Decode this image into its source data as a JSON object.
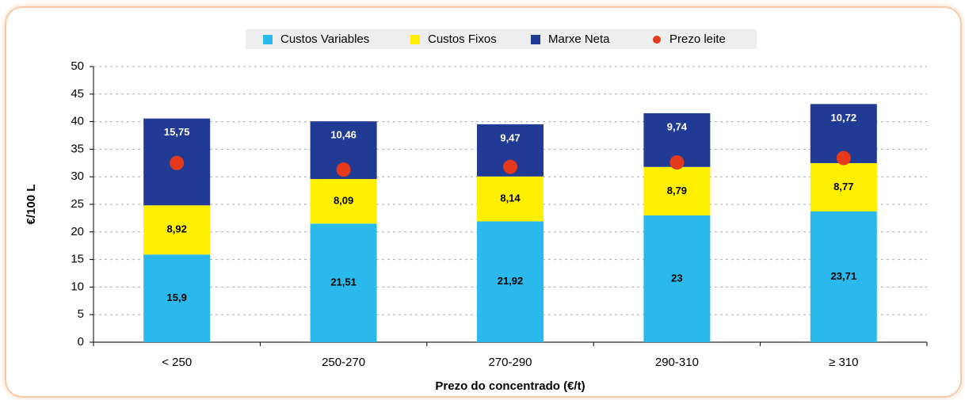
{
  "chart_data": {
    "type": "bar",
    "stacked": true,
    "categories": [
      "< 250",
      "250-270",
      "270-290",
      "290-310",
      "≥ 310"
    ],
    "series": [
      {
        "name": "Custos Variables",
        "color": "#2bb9ec",
        "values": [
          15.9,
          21.51,
          21.92,
          23,
          23.71
        ],
        "value_labels": [
          "15,9",
          "21,51",
          "21,92",
          "23",
          "23,71"
        ]
      },
      {
        "name": "Custos Fixos",
        "color": "#fff000",
        "values": [
          8.92,
          8.09,
          8.14,
          8.79,
          8.77
        ],
        "value_labels": [
          "8,92",
          "8,09",
          "8,14",
          "8,79",
          "8,77"
        ]
      },
      {
        "name": "Marxe Neta",
        "color": "#213b95",
        "values": [
          15.75,
          10.46,
          9.47,
          9.74,
          10.72
        ],
        "value_labels": [
          "15,75",
          "10,46",
          "9,47",
          "9,74",
          "10,72"
        ]
      },
      {
        "name": "Prezo leite",
        "color": "#e5391c",
        "type": "scatter",
        "values": [
          32.5,
          31.3,
          31.8,
          32.6,
          33.4
        ]
      }
    ],
    "y_label": "€/100 L",
    "x_label": "Prezo do concentrado (€/t)",
    "ylim": [
      0,
      50
    ],
    "yticks": [
      0,
      5,
      10,
      15,
      20,
      25,
      30,
      35,
      40,
      45,
      50
    ],
    "grid": true
  }
}
